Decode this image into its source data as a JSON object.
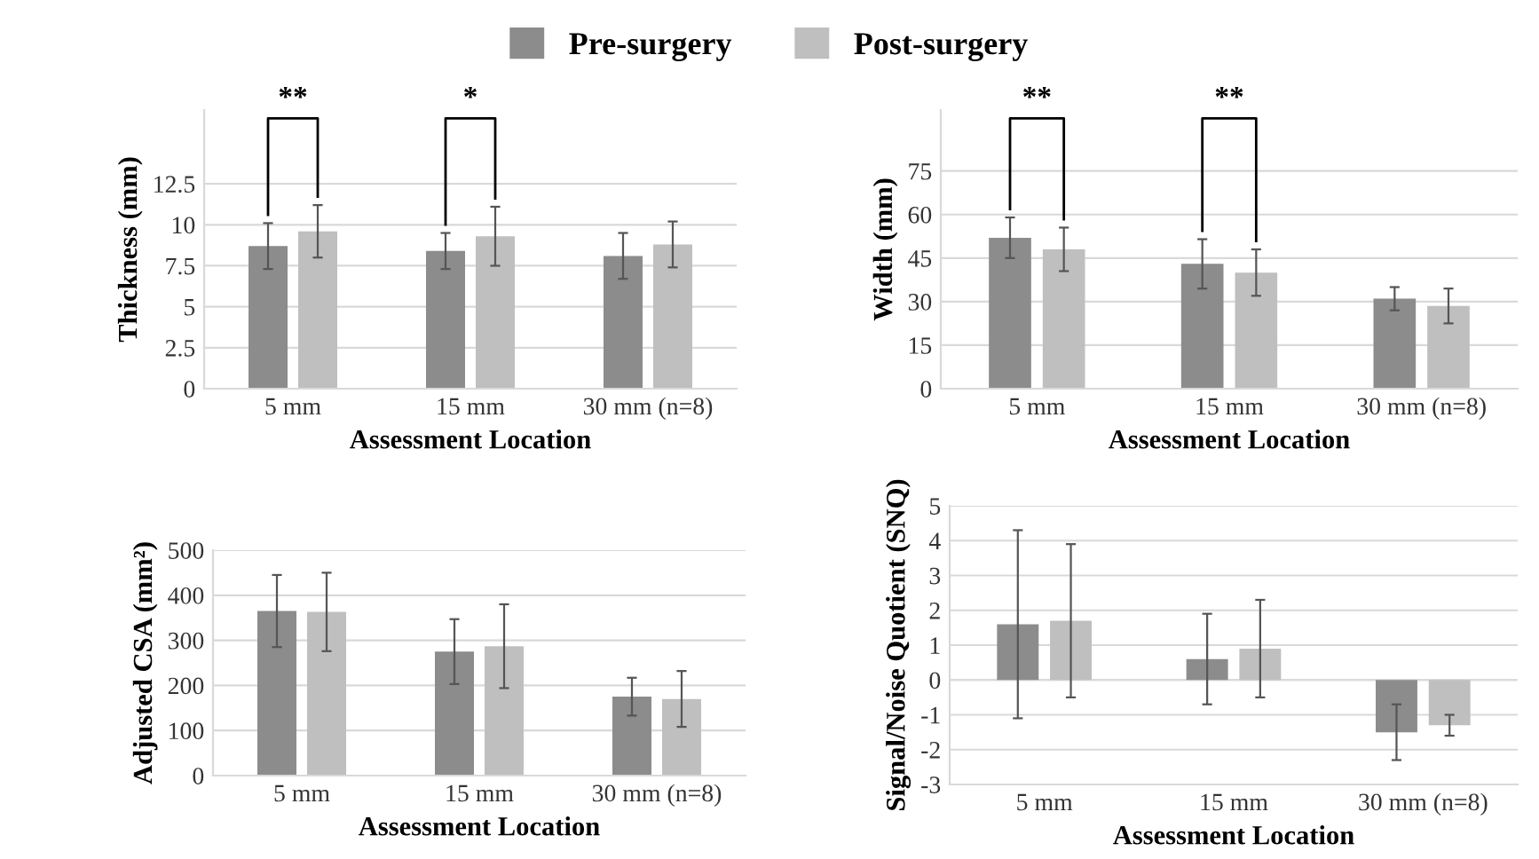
{
  "chart_data": [
    {
      "type": "bar",
      "categories": [
        "5 mm",
        "15 mm",
        "30 mm (n=8)"
      ],
      "xlabel": "Assessment Location",
      "ylabel": "Thickness (mm)",
      "ylim": [
        0,
        17
      ],
      "yticks": [
        0,
        2.5,
        5,
        7.5,
        10,
        12.5
      ],
      "grid": "y",
      "legend": "top",
      "series": [
        {
          "name": "Pre-surgery",
          "color": "#8c8c8c",
          "values": [
            8.7,
            8.4,
            8.1
          ],
          "errors": [
            1.4,
            1.1,
            1.4
          ]
        },
        {
          "name": "Post-surgery",
          "color": "#bfbfbf",
          "values": [
            9.6,
            9.3,
            8.8
          ],
          "errors": [
            1.6,
            1.8,
            1.4
          ]
        }
      ],
      "annotations": [
        "**",
        "*"
      ]
    },
    {
      "type": "bar",
      "categories": [
        "5 mm",
        "15 mm",
        "30 mm (n=8)"
      ],
      "xlabel": "Assessment Location",
      "ylabel": "Width (mm)",
      "ylim": [
        0,
        96
      ],
      "yticks": [
        0,
        15,
        30,
        45,
        60,
        75
      ],
      "grid": "y",
      "series": [
        {
          "color": "#8c8c8c",
          "values": [
            52,
            43,
            31
          ],
          "errors": [
            7,
            8.5,
            4
          ]
        },
        {
          "color": "#bfbfbf",
          "values": [
            48,
            40,
            28.5
          ],
          "errors": [
            7.5,
            8,
            6
          ]
        }
      ],
      "annotations": [
        "**",
        "**"
      ]
    },
    {
      "type": "bar",
      "categories": [
        "5 mm",
        "15 mm",
        "30 mm (n=8)"
      ],
      "xlabel": "Assessment Location",
      "ylabel": "Adjusted CSA (mm²)",
      "ylim": [
        0,
        500
      ],
      "yticks": [
        0,
        100,
        200,
        300,
        400,
        500
      ],
      "grid": "y",
      "series": [
        {
          "color": "#8c8c8c",
          "values": [
            365,
            275,
            175
          ],
          "errors": [
            80,
            72,
            42
          ]
        },
        {
          "color": "#bfbfbf",
          "values": [
            363,
            287,
            170
          ],
          "errors": [
            87,
            93,
            62
          ]
        }
      ]
    },
    {
      "type": "bar",
      "categories": [
        "5 mm",
        "15 mm",
        "30 mm (n=8)"
      ],
      "xlabel": "Assessment Location",
      "ylabel": "Signal/Noise Quotient (SNQ)",
      "ylim": [
        -3,
        5
      ],
      "yticks": [
        -3,
        -2,
        -1,
        0,
        1,
        2,
        3,
        4,
        5
      ],
      "grid": "y",
      "series": [
        {
          "color": "#8c8c8c",
          "values": [
            1.6,
            0.6,
            -1.5
          ],
          "errors": [
            [
              -1.1,
              4.3
            ],
            [
              -0.7,
              1.9
            ],
            [
              -2.3,
              -0.7
            ]
          ]
        },
        {
          "color": "#bfbfbf",
          "values": [
            1.7,
            0.9,
            -1.3
          ],
          "errors": [
            [
              -0.5,
              3.9
            ],
            [
              -0.5,
              2.3
            ],
            [
              -1.6,
              -1.0
            ]
          ]
        }
      ]
    }
  ]
}
